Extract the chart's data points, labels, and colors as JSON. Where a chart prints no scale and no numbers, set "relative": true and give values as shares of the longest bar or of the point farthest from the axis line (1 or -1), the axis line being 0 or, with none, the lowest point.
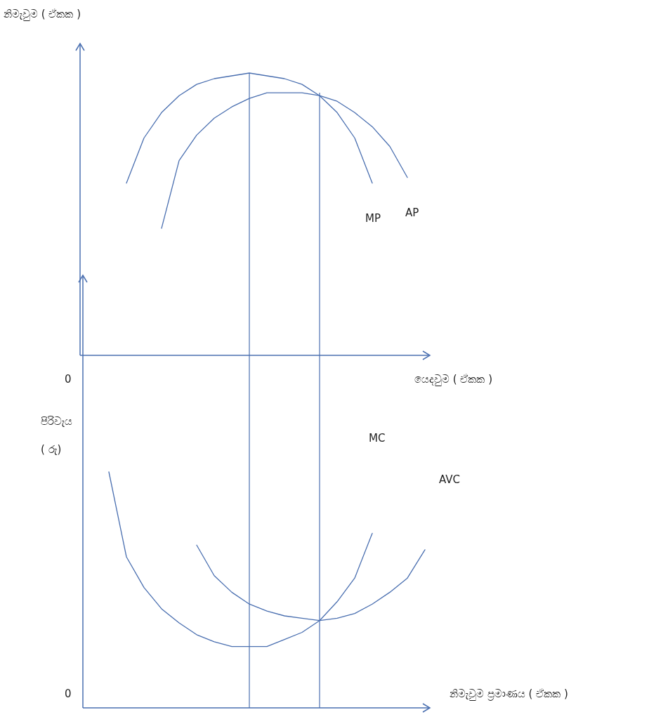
{
  "chart_data": [
    {
      "type": "line",
      "relative": true,
      "ylabel": "නිමැවුම ( ඒකක )",
      "xlabel": "යෙදවුම ( ඒකක )",
      "annotations": [
        "0"
      ],
      "marker": "none",
      "line_style": "solid",
      "categories": [
        null,
        null,
        null,
        null,
        null,
        null,
        null,
        null,
        null,
        null,
        null,
        null,
        null,
        null,
        null,
        null,
        null,
        null,
        null,
        null
      ],
      "series": [
        {
          "name": "MP",
          "color": "#4a6fb0",
          "values": [
            null,
            null,
            0.61,
            0.77,
            0.86,
            0.92,
            0.96,
            0.98,
            0.99,
            1,
            0.99,
            0.98,
            0.96,
            0.92,
            0.86,
            0.77,
            0.61,
            null,
            null,
            null
          ]
        },
        {
          "name": "AP",
          "color": "#4a6fb0",
          "values": [
            null,
            null,
            null,
            null,
            0.45,
            0.69,
            0.78,
            0.84,
            0.88,
            0.91,
            0.93,
            0.93,
            0.93,
            0.92,
            0.9,
            0.86,
            0.81,
            0.74,
            0.63,
            null
          ]
        }
      ]
    },
    {
      "type": "line",
      "relative": true,
      "ylabel": "පිරිවැය\n( රු)",
      "xlabel": "නිමැවුම ප්‍රමාණය ( ඒකක )",
      "annotations": [
        "0"
      ],
      "marker": "none",
      "line_style": "solid",
      "categories": [
        null,
        null,
        null,
        null,
        null,
        null,
        null,
        null,
        null,
        null,
        null,
        null,
        null,
        null,
        null,
        null,
        null,
        null,
        null,
        null
      ],
      "series": [
        {
          "name": "MC",
          "color": "#4a6fb0",
          "values": [
            null,
            1,
            0.64,
            0.51,
            0.42,
            0.36,
            0.31,
            0.28,
            0.26,
            0.26,
            0.26,
            0.29,
            0.32,
            0.37,
            0.45,
            0.55,
            0.74,
            null,
            null,
            null
          ]
        },
        {
          "name": "AVC",
          "color": "#4a6fb0",
          "values": [
            null,
            null,
            null,
            null,
            null,
            null,
            0.69,
            0.56,
            0.49,
            0.44,
            0.41,
            0.39,
            0.38,
            0.37,
            0.38,
            0.4,
            0.44,
            0.49,
            0.55,
            0.67
          ]
        }
      ]
    }
  ]
}
